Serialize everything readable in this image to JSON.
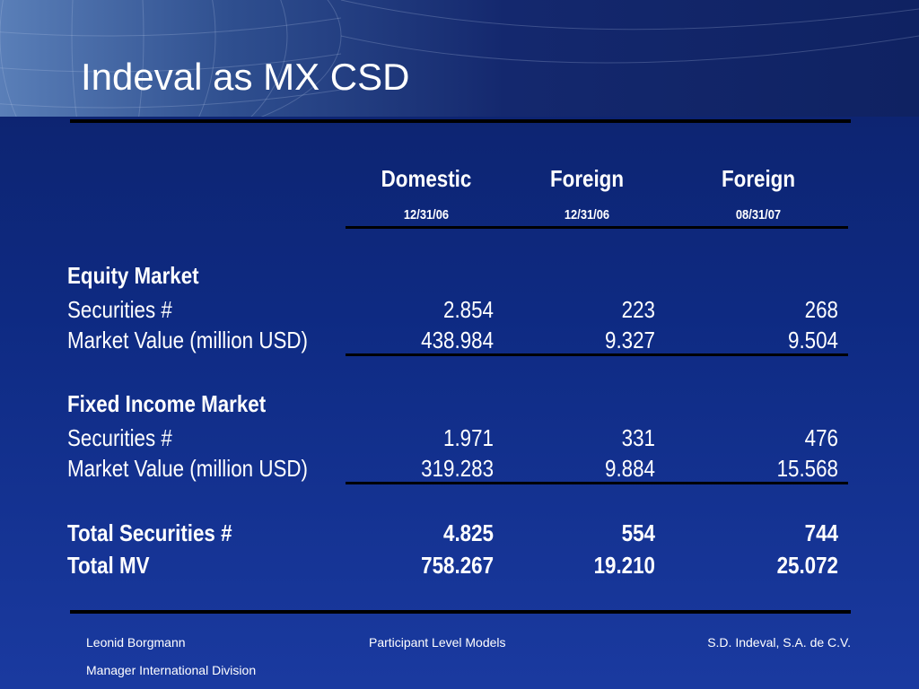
{
  "title": "Indeval as MX CSD",
  "columns": [
    {
      "heading": "Domestic",
      "date": "12/31/06"
    },
    {
      "heading": "Foreign",
      "date": "12/31/06"
    },
    {
      "heading": "Foreign",
      "date": "08/31/07"
    }
  ],
  "equity": {
    "section": "Equity Market",
    "rows": [
      {
        "label": "Securities #",
        "values": [
          "2.854",
          "223",
          "268"
        ]
      },
      {
        "label": "Market Value (million USD)",
        "values": [
          "438.984",
          "9.327",
          "9.504"
        ]
      }
    ]
  },
  "fixed_income": {
    "section": "Fixed Income Market",
    "rows": [
      {
        "label": "Securities #",
        "values": [
          "1.971",
          "331",
          "476"
        ]
      },
      {
        "label": "Market Value (million USD)",
        "values": [
          "319.283",
          "9.884",
          "15.568"
        ]
      }
    ]
  },
  "totals": [
    {
      "label": "Total Securities #",
      "values": [
        "4.825",
        "554",
        "744"
      ]
    },
    {
      "label": "Total MV",
      "values": [
        "758.267",
        "19.210",
        "25.072"
      ]
    }
  ],
  "footer": {
    "author": "Leonid Borgmann",
    "role": "Manager International Division",
    "center": "Participant Level Models",
    "right": "S.D. Indeval, S.A. de C.V."
  },
  "colors": {
    "background": "#0e2a82",
    "text": "#ffffff",
    "rule": "#000000"
  }
}
